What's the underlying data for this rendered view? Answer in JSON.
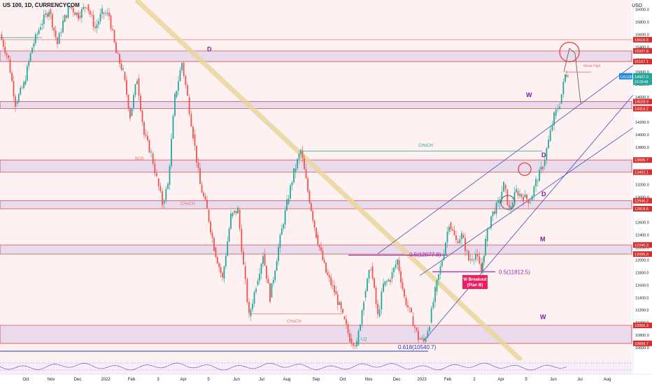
{
  "title": "US 100, 1D, CURRENCYCOM",
  "currency": "USD",
  "chart_data": {
    "type": "candlestick",
    "symbol": "US 100",
    "timeframe": "1D",
    "ylim": [
      10400,
      16150
    ],
    "y_ticks": [
      10600,
      10800,
      11000,
      11200,
      11400,
      11600,
      11800,
      12000,
      12200,
      12400,
      12600,
      12800,
      13000,
      13200,
      13400,
      13600,
      13800,
      14000,
      14200,
      14400,
      14600,
      14800,
      15000,
      15200,
      15400,
      15600,
      15800,
      16000
    ],
    "x_ticks": [
      "Oct",
      "Nov",
      "Dec",
      "2022",
      "Feb",
      "3",
      "Apr",
      "5",
      "Jun",
      "Jul",
      "Aug",
      "Sep",
      "Oct",
      "Nov",
      "Dec",
      "2023",
      "Feb",
      "2",
      "Apr",
      "5",
      "Jun",
      "Jul",
      "Aug"
    ],
    "price_path": [
      [
        0,
        15600
      ],
      [
        12,
        15200
      ],
      [
        22,
        14500
      ],
      [
        34,
        14800
      ],
      [
        46,
        15400
      ],
      [
        58,
        15750
      ],
      [
        70,
        16000
      ],
      [
        82,
        15450
      ],
      [
        90,
        15800
      ],
      [
        100,
        16050
      ],
      [
        112,
        15900
      ],
      [
        124,
        16080
      ],
      [
        136,
        15700
      ],
      [
        146,
        15950
      ],
      [
        156,
        15900
      ],
      [
        166,
        15300
      ],
      [
        176,
        15000
      ],
      [
        186,
        14300
      ],
      [
        196,
        14900
      ],
      [
        206,
        14000
      ],
      [
        216,
        13700
      ],
      [
        224,
        13300
      ],
      [
        232,
        12900
      ],
      [
        240,
        13200
      ],
      [
        250,
        14600
      ],
      [
        260,
        15150
      ],
      [
        268,
        14600
      ],
      [
        276,
        14000
      ],
      [
        286,
        13200
      ],
      [
        296,
        12800
      ],
      [
        306,
        12200
      ],
      [
        318,
        11700
      ],
      [
        330,
        12700
      ],
      [
        340,
        12800
      ],
      [
        348,
        11900
      ],
      [
        356,
        11100
      ],
      [
        366,
        11600
      ],
      [
        376,
        12100
      ],
      [
        386,
        11400
      ],
      [
        398,
        12200
      ],
      [
        410,
        12900
      ],
      [
        420,
        13400
      ],
      [
        430,
        13750
      ],
      [
        440,
        13100
      ],
      [
        452,
        12400
      ],
      [
        466,
        11800
      ],
      [
        478,
        11500
      ],
      [
        490,
        11100
      ],
      [
        500,
        10750
      ],
      [
        510,
        10650
      ],
      [
        520,
        11400
      ],
      [
        530,
        11900
      ],
      [
        540,
        11100
      ],
      [
        548,
        11600
      ],
      [
        558,
        11700
      ],
      [
        568,
        12000
      ],
      [
        578,
        11400
      ],
      [
        588,
        11100
      ],
      [
        598,
        10750
      ],
      [
        606,
        10700
      ],
      [
        614,
        11000
      ],
      [
        622,
        11500
      ],
      [
        632,
        12000
      ],
      [
        642,
        12600
      ],
      [
        652,
        12300
      ],
      [
        660,
        12400
      ],
      [
        670,
        12000
      ],
      [
        680,
        12100
      ],
      [
        688,
        11800
      ],
      [
        694,
        12300
      ],
      [
        702,
        12700
      ],
      [
        712,
        12900
      ],
      [
        720,
        13200
      ],
      [
        728,
        12800
      ],
      [
        738,
        13100
      ],
      [
        748,
        13000
      ],
      [
        758,
        12950
      ],
      [
        766,
        13250
      ],
      [
        776,
        13500
      ],
      [
        784,
        13900
      ],
      [
        792,
        14300
      ],
      [
        800,
        14500
      ],
      [
        808,
        14950
      ],
      [
        812,
        15000
      ]
    ],
    "current_price": "14927.0",
    "current_time": "13:29:49",
    "levels": [
      {
        "value": 15516.5,
        "label": "15516.5",
        "color": "#d32f2f"
      },
      {
        "value": 15337.8,
        "label": "15337.8",
        "color": "#d32f2f"
      },
      {
        "value": 15167.1,
        "label": "15167.1",
        "color": "#d32f2f"
      },
      {
        "value": 14528.9,
        "label": "14528.9",
        "color": "#d32f2f"
      },
      {
        "value": 14416.2,
        "label": "14416.2",
        "color": "#d32f2f"
      },
      {
        "value": 13595.7,
        "label": "13595.7",
        "color": "#d32f2f"
      },
      {
        "value": 13402.1,
        "label": "13402.1",
        "color": "#d32f2f"
      },
      {
        "value": 12946.2,
        "label": "12946.2",
        "color": "#d32f2f"
      },
      {
        "value": 12818.6,
        "label": "12818.6",
        "color": "#d32f2f"
      },
      {
        "value": 12240.3,
        "label": "12240.3",
        "color": "#d32f2f"
      },
      {
        "value": 12095.0,
        "label": "12095.0",
        "color": "#d32f2f"
      },
      {
        "value": 10956.3,
        "label": "10956.3",
        "color": "#d32f2f"
      },
      {
        "value": 10669.7,
        "label": "10669.7",
        "color": "#d32f2f"
      }
    ],
    "zones": [
      {
        "top": 15337.8,
        "bottom": 15167.1,
        "tf": "D"
      },
      {
        "top": 14528.9,
        "bottom": 14416.2,
        "tf": "W"
      },
      {
        "top": 13595.7,
        "bottom": 13402.1,
        "tf": "D"
      },
      {
        "top": 12946.2,
        "bottom": 12818.6,
        "tf": "D"
      },
      {
        "top": 12240.3,
        "bottom": 12095.0,
        "tf": "M"
      },
      {
        "top": 10956.3,
        "bottom": 10669.7,
        "tf": "W"
      }
    ],
    "annotations": {
      "fib_a": "0.5(12077.8)",
      "fib_b": "0.5(11812.5)",
      "fib_c": "0.618(10540.7)",
      "breakout_1": "W Breakout",
      "breakout_2": "(Plan B)",
      "choch": "CHoCH",
      "bos": "BOS",
      "lq": "LQ",
      "weak_high": "Weak High",
      "tag_d1": "D",
      "tag_w1": "W",
      "tag_d2": "D",
      "tag_d3": "D",
      "tag_m": "M",
      "tag_w2": "W"
    },
    "price_tag": "US100",
    "grid": false
  }
}
